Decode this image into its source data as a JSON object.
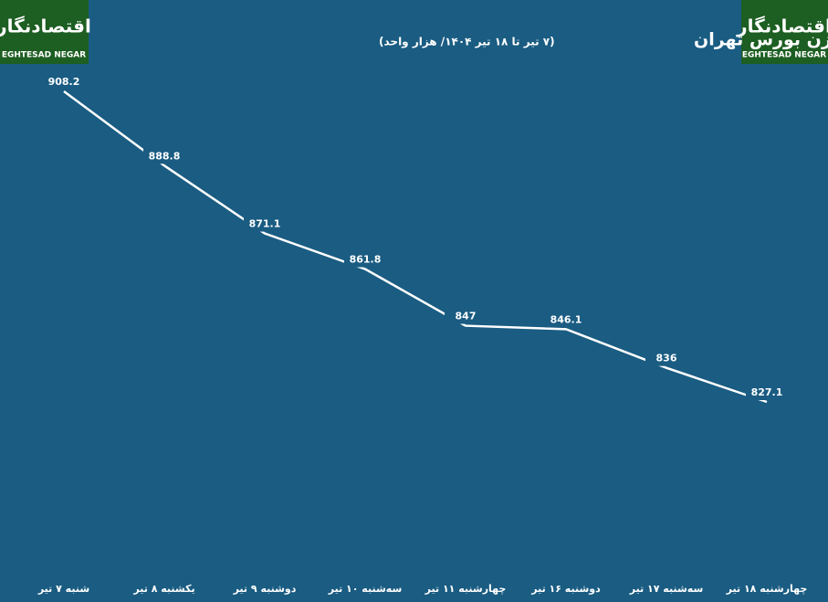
{
  "chart_data": {
    "type": "line",
    "title": "تغییرات شاخص کل هم وزن بورس تهران",
    "subtitle": "(۷ تیر تا ۱۸ تیر ۱۴۰۴/ هزار واحد)",
    "categories": [
      "شنبه ۷ تیر",
      "یکشنبه ۸ تیر",
      "دوشنبه ۹ تیر",
      "سه‌شنبه ۱۰ تیر",
      "چهارشنبه ۱۱ تیر",
      "دوشنبه ۱۶ تیر",
      "سه‌شنبه ۱۷ تیر",
      "چهارشنبه ۱۸ تیر"
    ],
    "values": [
      908.2,
      888.8,
      871.1,
      861.8,
      847,
      846.1,
      836,
      827.1
    ],
    "color": "#ffffff"
  },
  "logo": {
    "mark": "اقتصادنگار",
    "name": "EGHTESAD NEGAR"
  }
}
